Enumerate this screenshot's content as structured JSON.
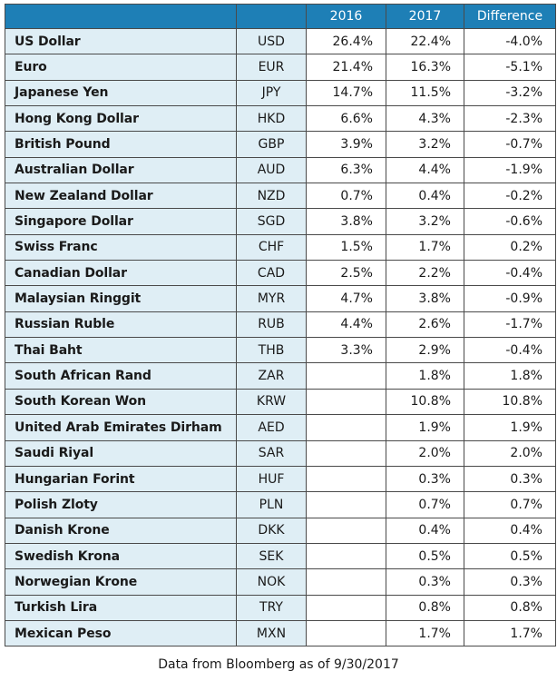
{
  "table": {
    "headers": [
      "",
      "",
      "2016",
      "2017",
      "Difference"
    ],
    "rows": [
      {
        "name": "US Dollar",
        "code": "USD",
        "y2016": "26.4%",
        "y2017": "22.4%",
        "diff": "-4.0%"
      },
      {
        "name": "Euro",
        "code": "EUR",
        "y2016": "21.4%",
        "y2017": "16.3%",
        "diff": "-5.1%"
      },
      {
        "name": "Japanese Yen",
        "code": "JPY",
        "y2016": "14.7%",
        "y2017": "11.5%",
        "diff": "-3.2%"
      },
      {
        "name": "Hong Kong Dollar",
        "code": "HKD",
        "y2016": "6.6%",
        "y2017": "4.3%",
        "diff": "-2.3%"
      },
      {
        "name": "British Pound",
        "code": "GBP",
        "y2016": "3.9%",
        "y2017": "3.2%",
        "diff": "-0.7%"
      },
      {
        "name": "Australian Dollar",
        "code": "AUD",
        "y2016": "6.3%",
        "y2017": "4.4%",
        "diff": "-1.9%"
      },
      {
        "name": "New Zealand Dollar",
        "code": "NZD",
        "y2016": "0.7%",
        "y2017": "0.4%",
        "diff": "-0.2%"
      },
      {
        "name": "Singapore Dollar",
        "code": "SGD",
        "y2016": "3.8%",
        "y2017": "3.2%",
        "diff": "-0.6%"
      },
      {
        "name": "Swiss Franc",
        "code": "CHF",
        "y2016": "1.5%",
        "y2017": "1.7%",
        "diff": "0.2%"
      },
      {
        "name": "Canadian Dollar",
        "code": "CAD",
        "y2016": "2.5%",
        "y2017": "2.2%",
        "diff": "-0.4%"
      },
      {
        "name": "Malaysian Ringgit",
        "code": "MYR",
        "y2016": "4.7%",
        "y2017": "3.8%",
        "diff": "-0.9%"
      },
      {
        "name": "Russian Ruble",
        "code": "RUB",
        "y2016": "4.4%",
        "y2017": "2.6%",
        "diff": "-1.7%"
      },
      {
        "name": "Thai Baht",
        "code": "THB",
        "y2016": "3.3%",
        "y2017": "2.9%",
        "diff": "-0.4%"
      },
      {
        "name": "South African Rand",
        "code": "ZAR",
        "y2016": "",
        "y2017": "1.8%",
        "diff": "1.8%"
      },
      {
        "name": "South Korean Won",
        "code": "KRW",
        "y2016": "",
        "y2017": "10.8%",
        "diff": "10.8%"
      },
      {
        "name": "United Arab Emirates Dirham",
        "code": "AED",
        "y2016": "",
        "y2017": "1.9%",
        "diff": "1.9%"
      },
      {
        "name": "Saudi Riyal",
        "code": "SAR",
        "y2016": "",
        "y2017": "2.0%",
        "diff": "2.0%"
      },
      {
        "name": "Hungarian Forint",
        "code": "HUF",
        "y2016": "",
        "y2017": "0.3%",
        "diff": "0.3%"
      },
      {
        "name": "Polish Zloty",
        "code": "PLN",
        "y2016": "",
        "y2017": "0.7%",
        "diff": "0.7%"
      },
      {
        "name": "Danish Krone",
        "code": "DKK",
        "y2016": "",
        "y2017": "0.4%",
        "diff": "0.4%"
      },
      {
        "name": "Swedish Krona",
        "code": "SEK",
        "y2016": "",
        "y2017": "0.5%",
        "diff": "0.5%"
      },
      {
        "name": "Norwegian Krone",
        "code": "NOK",
        "y2016": "",
        "y2017": "0.3%",
        "diff": "0.3%"
      },
      {
        "name": "Turkish Lira",
        "code": "TRY",
        "y2016": "",
        "y2017": "0.8%",
        "diff": "0.8%"
      },
      {
        "name": "Mexican Peso",
        "code": "MXN",
        "y2016": "",
        "y2017": "1.7%",
        "diff": "1.7%"
      }
    ]
  },
  "footnote": "Data from Bloomberg as of 9/30/2017",
  "colors": {
    "header_bg": "#1e7fb6",
    "label_bg": "#dfeef5",
    "border": "#4a4a4a"
  }
}
